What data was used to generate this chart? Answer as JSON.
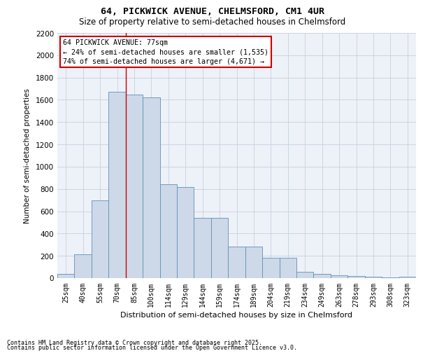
{
  "title_line1": "64, PICKWICK AVENUE, CHELMSFORD, CM1 4UR",
  "title_line2": "Size of property relative to semi-detached houses in Chelmsford",
  "xlabel": "Distribution of semi-detached houses by size in Chelmsford",
  "ylabel": "Number of semi-detached properties",
  "categories": [
    "25sqm",
    "40sqm",
    "55sqm",
    "70sqm",
    "85sqm",
    "100sqm",
    "114sqm",
    "129sqm",
    "144sqm",
    "159sqm",
    "174sqm",
    "189sqm",
    "204sqm",
    "219sqm",
    "234sqm",
    "249sqm",
    "263sqm",
    "278sqm",
    "293sqm",
    "308sqm",
    "323sqm"
  ],
  "values": [
    40,
    215,
    700,
    1670,
    1650,
    1620,
    840,
    820,
    540,
    540,
    280,
    280,
    185,
    185,
    55,
    40,
    25,
    20,
    10,
    5,
    10
  ],
  "bar_color": "#cdd9e8",
  "bar_edge_color": "#6090b8",
  "grid_color": "#c8cfe0",
  "bg_color": "#edf1f8",
  "annotation_box_color": "#cc0000",
  "vline_color": "#cc0000",
  "vline_x_index": 3,
  "property_label": "64 PICKWICK AVENUE: 77sqm",
  "smaller_text": "← 24% of semi-detached houses are smaller (1,535)",
  "larger_text": "74% of semi-detached houses are larger (4,671) →",
  "ylim": [
    0,
    2200
  ],
  "yticks": [
    0,
    200,
    400,
    600,
    800,
    1000,
    1200,
    1400,
    1600,
    1800,
    2000,
    2200
  ],
  "footnote1": "Contains HM Land Registry data © Crown copyright and database right 2025.",
  "footnote2": "Contains public sector information licensed under the Open Government Licence v3.0."
}
